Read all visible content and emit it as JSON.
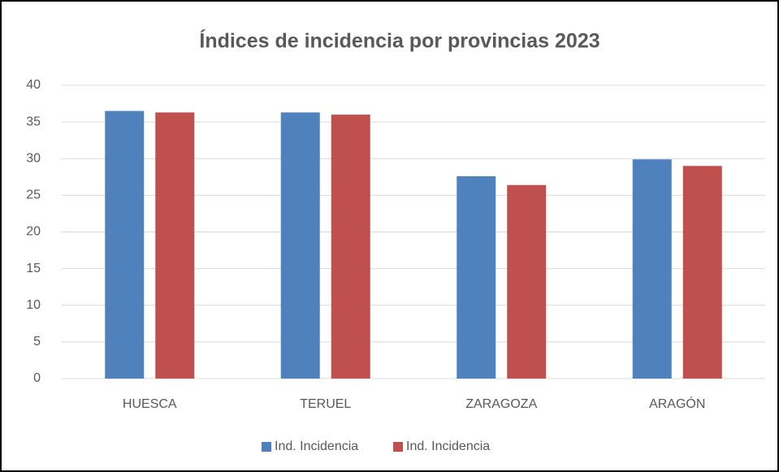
{
  "chart_data": {
    "type": "bar",
    "title": "Índices de incidencia por provincias 2023",
    "categories": [
      "HUESCA",
      "TERUEL",
      "ZARAGOZA",
      "ARAGÓN"
    ],
    "series": [
      {
        "name": "Ind. Incidencia",
        "color": "#4f81bd",
        "values": [
          36.5,
          36.3,
          27.6,
          29.9
        ]
      },
      {
        "name": "Ind. Incidencia",
        "color": "#c0504d",
        "values": [
          36.3,
          36.0,
          26.4,
          29.0
        ]
      }
    ],
    "ylim": [
      0,
      40
    ],
    "yticks": [
      0,
      5,
      10,
      15,
      20,
      25,
      30,
      35,
      40
    ],
    "grid": true,
    "legend": "bottom"
  }
}
